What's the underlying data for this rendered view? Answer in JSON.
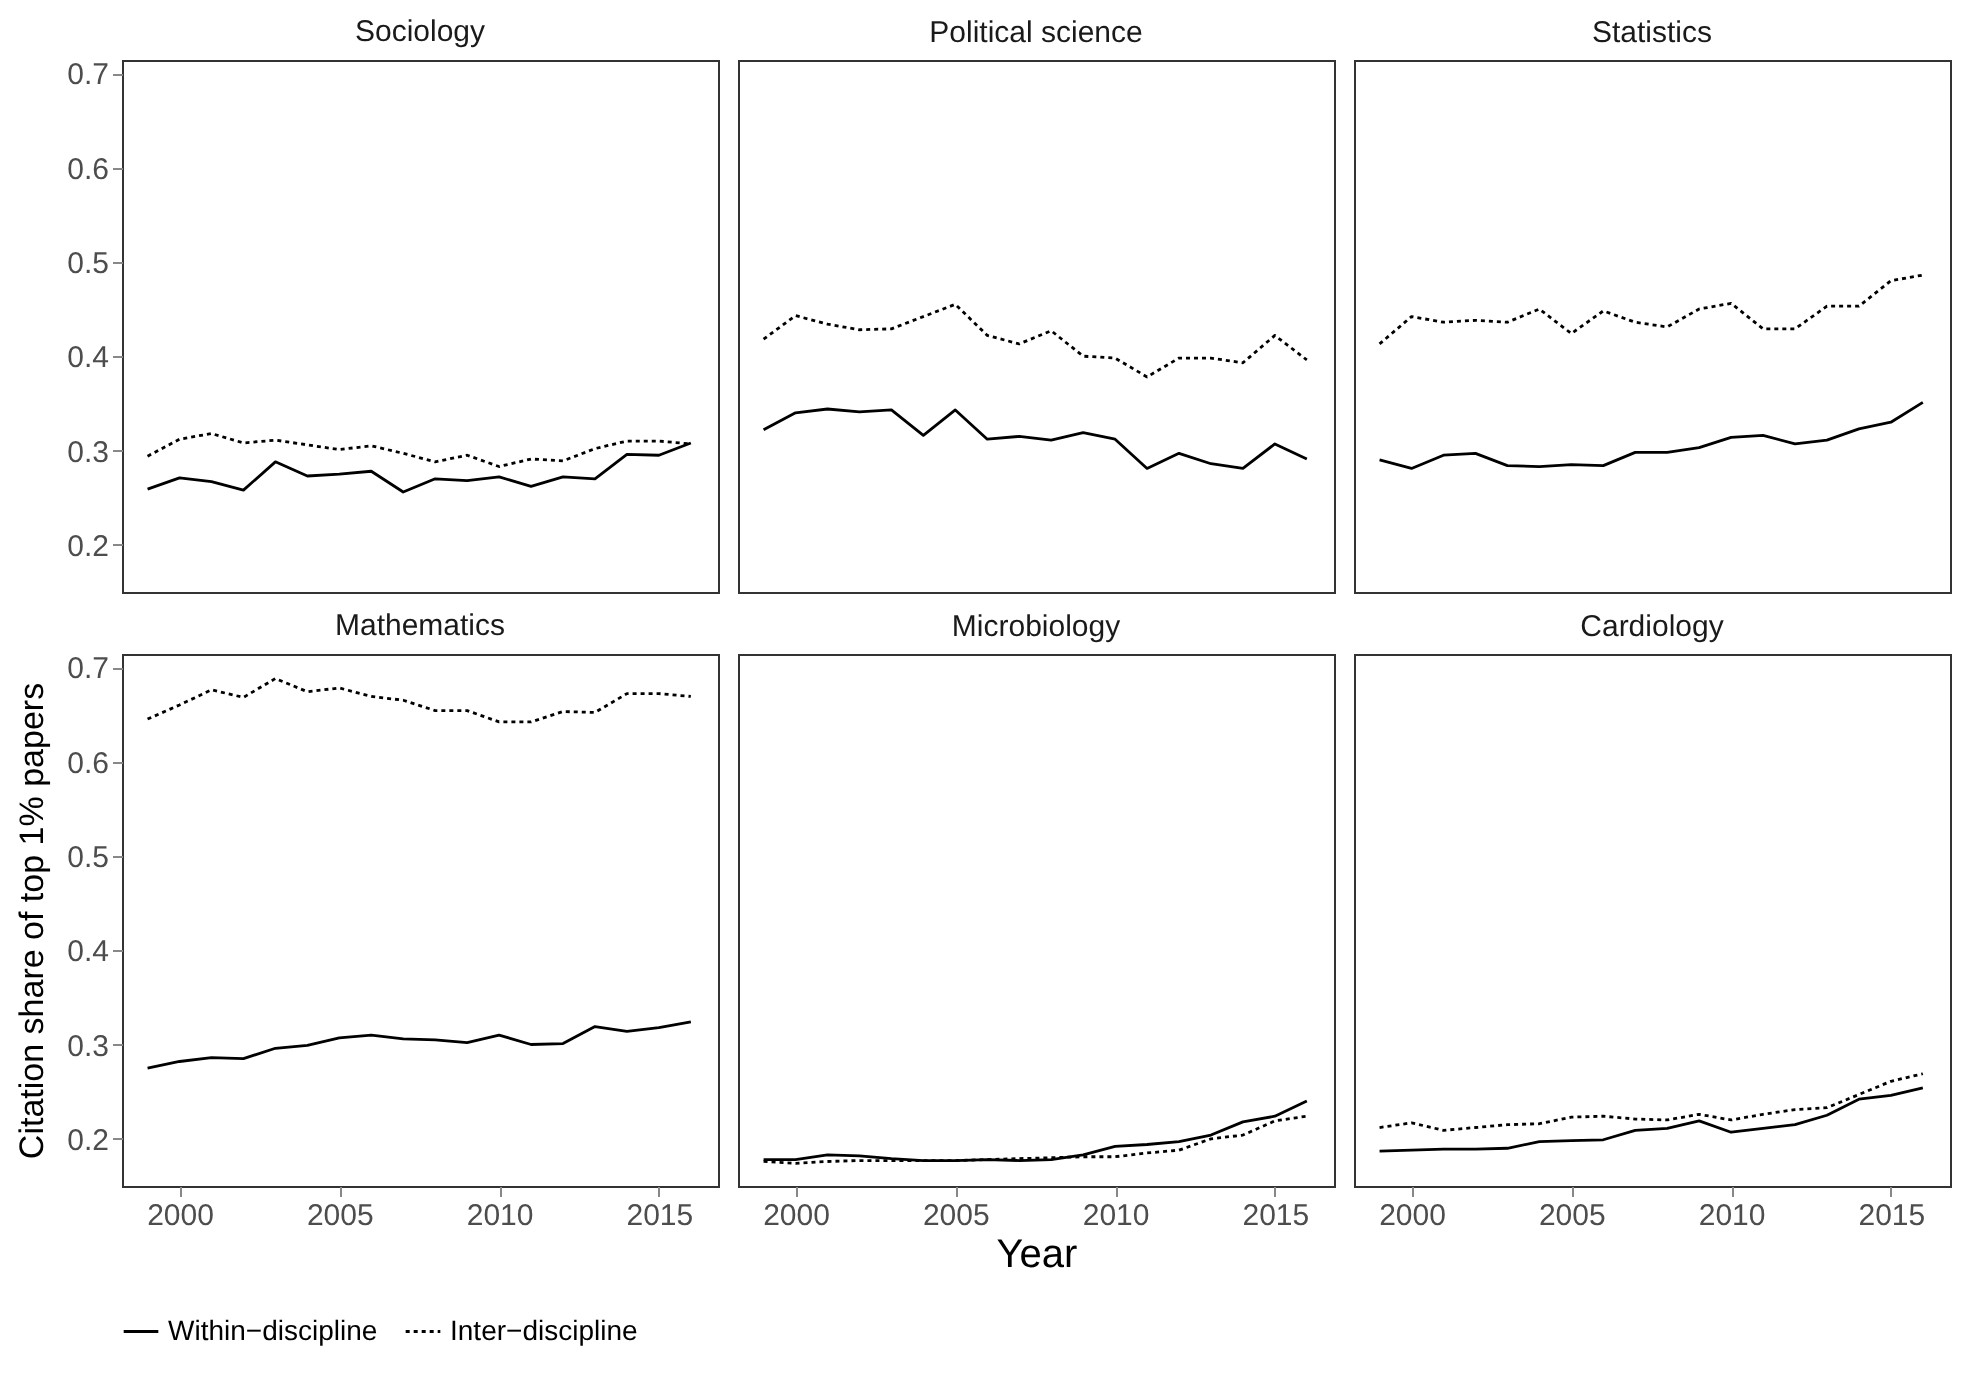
{
  "chart_data": [
    {
      "type": "line",
      "title": "Sociology",
      "x": [
        1999,
        2000,
        2001,
        2002,
        2003,
        2004,
        2005,
        2006,
        2007,
        2008,
        2009,
        2010,
        2011,
        2012,
        2013,
        2014,
        2015,
        2016
      ],
      "xlim": [
        1998.2,
        2016.85
      ],
      "xticks": [
        2000,
        2005,
        2010,
        2015
      ],
      "ylim": [
        0.15,
        0.714
      ],
      "yticks": [
        0.2,
        0.3,
        0.4,
        0.5,
        0.6,
        0.7
      ],
      "tick_labels": "y",
      "grid": false,
      "legend": "bottom",
      "series": [
        {
          "name": "Within−discipline",
          "color": "#000000",
          "line_style": "solid",
          "values": [
            0.259,
            0.271,
            0.267,
            0.258,
            0.288,
            0.273,
            0.275,
            0.278,
            0.256,
            0.27,
            0.268,
            0.272,
            0.262,
            0.272,
            0.27,
            0.296,
            0.295,
            0.308
          ]
        },
        {
          "name": "Inter−discipline",
          "color": "#000000",
          "line_style": "dotted",
          "values": [
            0.294,
            0.312,
            0.318,
            0.308,
            0.311,
            0.306,
            0.301,
            0.305,
            0.297,
            0.288,
            0.295,
            0.283,
            0.291,
            0.289,
            0.302,
            0.31,
            0.31,
            0.307
          ]
        }
      ]
    },
    {
      "type": "line",
      "title": "Political science",
      "x": [
        1999,
        2000,
        2001,
        2002,
        2003,
        2004,
        2005,
        2006,
        2007,
        2008,
        2009,
        2010,
        2011,
        2012,
        2013,
        2014,
        2015,
        2016
      ],
      "xlim": [
        1998.2,
        2016.85
      ],
      "xticks": [
        2000,
        2005,
        2010,
        2015
      ],
      "ylim": [
        0.15,
        0.714
      ],
      "yticks": [
        0.2,
        0.3,
        0.4,
        0.5,
        0.6,
        0.7
      ],
      "tick_labels": false,
      "grid": false,
      "legend": "bottom",
      "series": [
        {
          "name": "Within−discipline",
          "color": "#000000",
          "line_style": "solid",
          "values": [
            0.322,
            0.34,
            0.344,
            0.341,
            0.343,
            0.316,
            0.343,
            0.312,
            0.315,
            0.311,
            0.319,
            0.312,
            0.281,
            0.297,
            0.286,
            0.281,
            0.307,
            0.291
          ]
        },
        {
          "name": "Inter−discipline",
          "color": "#000000",
          "line_style": "dotted",
          "values": [
            0.418,
            0.443,
            0.434,
            0.428,
            0.429,
            0.442,
            0.455,
            0.422,
            0.413,
            0.427,
            0.4,
            0.398,
            0.378,
            0.398,
            0.398,
            0.393,
            0.422,
            0.396
          ]
        }
      ]
    },
    {
      "type": "line",
      "title": "Statistics",
      "x": [
        1999,
        2000,
        2001,
        2002,
        2003,
        2004,
        2005,
        2006,
        2007,
        2008,
        2009,
        2010,
        2011,
        2012,
        2013,
        2014,
        2015,
        2016
      ],
      "xlim": [
        1998.2,
        2016.85
      ],
      "xticks": [
        2000,
        2005,
        2010,
        2015
      ],
      "ylim": [
        0.15,
        0.714
      ],
      "yticks": [
        0.2,
        0.3,
        0.4,
        0.5,
        0.6,
        0.7
      ],
      "tick_labels": false,
      "grid": false,
      "legend": "bottom",
      "series": [
        {
          "name": "Within−discipline",
          "color": "#000000",
          "line_style": "solid",
          "values": [
            0.29,
            0.281,
            0.295,
            0.297,
            0.284,
            0.283,
            0.285,
            0.284,
            0.298,
            0.298,
            0.303,
            0.314,
            0.316,
            0.307,
            0.311,
            0.323,
            0.33,
            0.351
          ]
        },
        {
          "name": "Inter−discipline",
          "color": "#000000",
          "line_style": "dotted",
          "values": [
            0.413,
            0.442,
            0.436,
            0.438,
            0.436,
            0.45,
            0.424,
            0.448,
            0.436,
            0.431,
            0.45,
            0.456,
            0.429,
            0.429,
            0.453,
            0.453,
            0.48,
            0.486
          ]
        }
      ]
    },
    {
      "type": "line",
      "title": "Mathematics",
      "ylabel": "Citation share of top 1% papers",
      "x": [
        1999,
        2000,
        2001,
        2002,
        2003,
        2004,
        2005,
        2006,
        2007,
        2008,
        2009,
        2010,
        2011,
        2012,
        2013,
        2014,
        2015,
        2016
      ],
      "xlim": [
        1998.2,
        2016.85
      ],
      "xticks": [
        2000,
        2005,
        2010,
        2015
      ],
      "ylim": [
        0.15,
        0.714
      ],
      "yticks": [
        0.2,
        0.3,
        0.4,
        0.5,
        0.6,
        0.7
      ],
      "grid": false,
      "legend": "bottom",
      "series": [
        {
          "name": "Within−discipline",
          "color": "#000000",
          "line_style": "solid",
          "values": [
            0.275,
            0.282,
            0.286,
            0.285,
            0.296,
            0.299,
            0.307,
            0.31,
            0.306,
            0.305,
            0.302,
            0.31,
            0.3,
            0.301,
            0.319,
            0.314,
            0.318,
            0.324
          ]
        },
        {
          "name": "Inter−discipline",
          "color": "#000000",
          "line_style": "dotted",
          "values": [
            0.645,
            0.66,
            0.676,
            0.668,
            0.688,
            0.674,
            0.678,
            0.669,
            0.665,
            0.654,
            0.654,
            0.642,
            0.642,
            0.653,
            0.652,
            0.672,
            0.672,
            0.669
          ]
        }
      ]
    },
    {
      "type": "line",
      "title": "Microbiology",
      "xlabel": "Year",
      "x": [
        1999,
        2000,
        2001,
        2002,
        2003,
        2004,
        2005,
        2006,
        2007,
        2008,
        2009,
        2010,
        2011,
        2012,
        2013,
        2014,
        2015,
        2016
      ],
      "xlim": [
        1998.2,
        2016.85
      ],
      "xticks": [
        2000,
        2005,
        2010,
        2015
      ],
      "ylim": [
        0.15,
        0.714
      ],
      "yticks": [
        0.2,
        0.3,
        0.4,
        0.5,
        0.6,
        0.7
      ],
      "tick_labels": "x",
      "grid": false,
      "legend": "bottom",
      "series": [
        {
          "name": "Within−discipline",
          "color": "#000000",
          "line_style": "solid",
          "values": [
            0.178,
            0.178,
            0.183,
            0.182,
            0.179,
            0.177,
            0.177,
            0.178,
            0.177,
            0.178,
            0.183,
            0.192,
            0.194,
            0.197,
            0.204,
            0.218,
            0.224,
            0.24
          ]
        },
        {
          "name": "Inter−discipline",
          "color": "#000000",
          "line_style": "dotted",
          "values": [
            0.176,
            0.174,
            0.176,
            0.177,
            0.177,
            0.177,
            0.177,
            0.178,
            0.179,
            0.18,
            0.181,
            0.181,
            0.185,
            0.188,
            0.2,
            0.204,
            0.219,
            0.224
          ]
        }
      ]
    },
    {
      "type": "line",
      "title": "Cardiology",
      "x": [
        1999,
        2000,
        2001,
        2002,
        2003,
        2004,
        2005,
        2006,
        2007,
        2008,
        2009,
        2010,
        2011,
        2012,
        2013,
        2014,
        2015,
        2016
      ],
      "xlim": [
        1998.2,
        2016.85
      ],
      "xticks": [
        2000,
        2005,
        2010,
        2015
      ],
      "ylim": [
        0.15,
        0.714
      ],
      "yticks": [
        0.2,
        0.3,
        0.4,
        0.5,
        0.6,
        0.7
      ],
      "tick_labels": "x",
      "grid": false,
      "legend": "bottom",
      "series": [
        {
          "name": "Within−discipline",
          "color": "#000000",
          "line_style": "solid",
          "values": [
            0.187,
            0.188,
            0.189,
            0.189,
            0.19,
            0.197,
            0.198,
            0.199,
            0.209,
            0.211,
            0.219,
            0.207,
            0.211,
            0.215,
            0.225,
            0.242,
            0.246,
            0.254
          ]
        },
        {
          "name": "Inter−discipline",
          "color": "#000000",
          "line_style": "dotted",
          "values": [
            0.212,
            0.217,
            0.209,
            0.212,
            0.215,
            0.216,
            0.223,
            0.224,
            0.221,
            0.22,
            0.226,
            0.22,
            0.226,
            0.231,
            0.233,
            0.247,
            0.261,
            0.269
          ]
        }
      ]
    }
  ]
}
